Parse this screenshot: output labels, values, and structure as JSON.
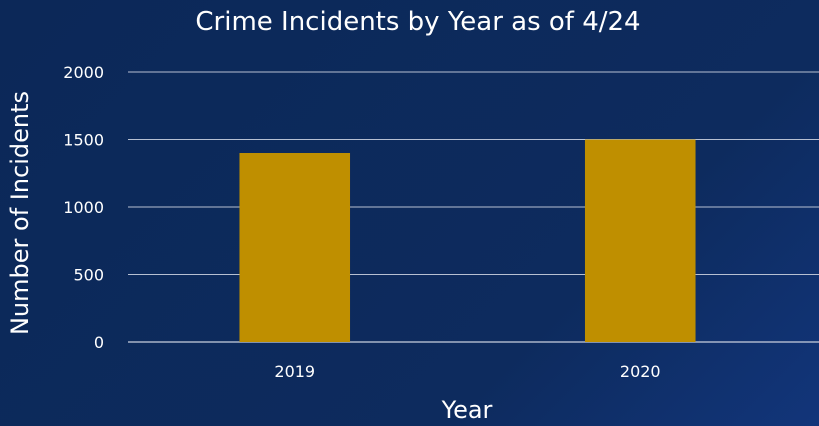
{
  "chart_data": {
    "type": "bar",
    "title": "Crime Incidents by Year as of 4/24",
    "xlabel": "Year",
    "ylabel": "Number of Incidents",
    "categories": [
      "2019",
      "2020"
    ],
    "values": [
      1400,
      1500
    ],
    "ylim": [
      0,
      2000
    ],
    "yticks": [
      "0",
      "500",
      "1000",
      "1500",
      "2000"
    ],
    "grid": true,
    "legend": "none",
    "colors": {
      "background": "#0d2a5c",
      "bar": "#bf8f00",
      "text": "#ffffff",
      "grid": "#b7c0d2"
    }
  }
}
